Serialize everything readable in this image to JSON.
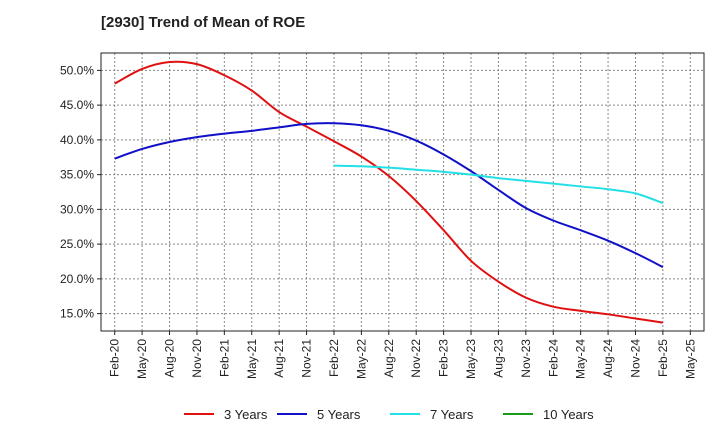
{
  "chart_data": {
    "type": "line",
    "title": "[2930]  Trend of Mean of ROE",
    "xlabel": "",
    "ylabel": "",
    "ylim": [
      12.5,
      52.5
    ],
    "y_ticks": [
      15,
      20,
      25,
      30,
      35,
      40,
      45,
      50
    ],
    "y_tick_labels": [
      "15.0%",
      "20.0%",
      "25.0%",
      "30.0%",
      "35.0%",
      "40.0%",
      "45.0%",
      "50.0%"
    ],
    "x_tick_labels": [
      "Feb-20",
      "May-20",
      "Aug-20",
      "Nov-20",
      "Feb-21",
      "May-21",
      "Aug-21",
      "Nov-21",
      "Feb-22",
      "May-22",
      "Aug-22",
      "Nov-22",
      "Feb-23",
      "May-23",
      "Aug-23",
      "Nov-23",
      "Feb-24",
      "May-24",
      "Aug-24",
      "Nov-24",
      "Feb-25",
      "May-25"
    ],
    "grid": true,
    "legend_position": "bottom",
    "series": [
      {
        "name": "3 Years",
        "color": "#e01010",
        "values": [
          48.1,
          50.2,
          51.2,
          50.9,
          49.3,
          47.1,
          44.0,
          41.9,
          39.8,
          37.6,
          34.8,
          31.2,
          27.0,
          22.6,
          19.6,
          17.3,
          16.0,
          15.4,
          14.9,
          14.3,
          13.7
        ]
      },
      {
        "name": "5 Years",
        "color": "#1010c8",
        "values": [
          37.3,
          38.7,
          39.7,
          40.4,
          40.9,
          41.3,
          41.8,
          42.3,
          42.4,
          42.1,
          41.3,
          39.9,
          37.9,
          35.5,
          32.8,
          30.2,
          28.4,
          27.0,
          25.5,
          23.7,
          21.7
        ]
      },
      {
        "name": "7 Years",
        "color": "#22e0e6",
        "start_index": 8,
        "values": [
          36.3,
          36.2,
          36.0,
          35.7,
          35.4,
          35.0,
          34.5,
          34.1,
          33.7,
          33.3,
          32.9,
          32.3,
          30.9
        ]
      },
      {
        "name": "10 Years",
        "color": "#1a9a1a",
        "values": []
      }
    ]
  }
}
